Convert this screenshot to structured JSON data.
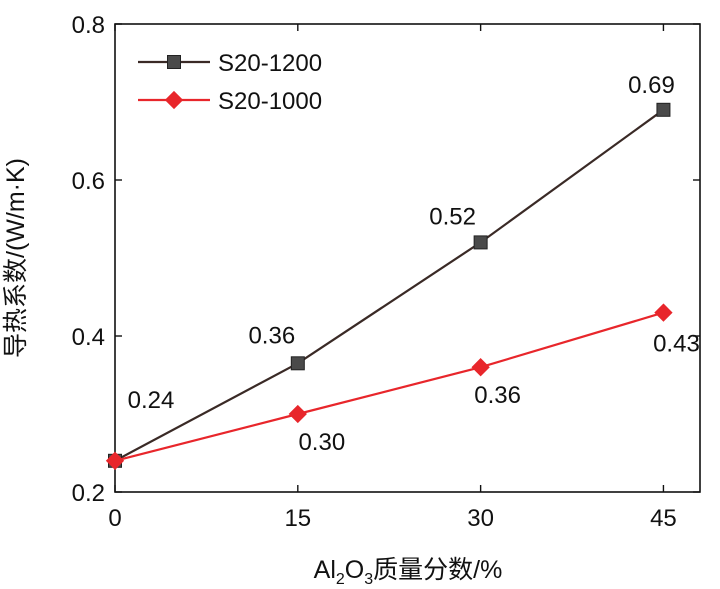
{
  "chart_data": {
    "type": "line",
    "title": "",
    "x": [
      0,
      15,
      30,
      45
    ],
    "xlim": [
      0,
      48
    ],
    "xticks": [
      0,
      15,
      30,
      45
    ],
    "ylim": [
      0.2,
      0.8
    ],
    "yticks": [
      0.2,
      0.4,
      0.6,
      0.8
    ],
    "ytick_labels": [
      "0.2",
      "0.4",
      "0.6",
      "0.8"
    ],
    "xlabel": {
      "prefix": "Al",
      "sub1": "2",
      "mid": "O",
      "sub2": "3",
      "suffix": "质量分数/%"
    },
    "ylabel": "导热系数/(W/m·K)",
    "grid": false,
    "legend_position": "top-left",
    "series": [
      {
        "name": "S20-1200",
        "marker": "square",
        "line_color": "#3a2a26",
        "marker_color": "#4a4a4a",
        "values": [
          0.24,
          0.365,
          0.52,
          0.69
        ],
        "labels": [
          "",
          "0.36",
          "0.52",
          "0.69"
        ]
      },
      {
        "name": "S20-1000",
        "marker": "diamond",
        "line_color": "#e8262b",
        "marker_color": "#e8262b",
        "values": [
          0.24,
          0.3,
          0.36,
          0.43
        ],
        "labels": [
          "0.24",
          "0.30",
          "0.36",
          "0.43"
        ]
      }
    ]
  }
}
